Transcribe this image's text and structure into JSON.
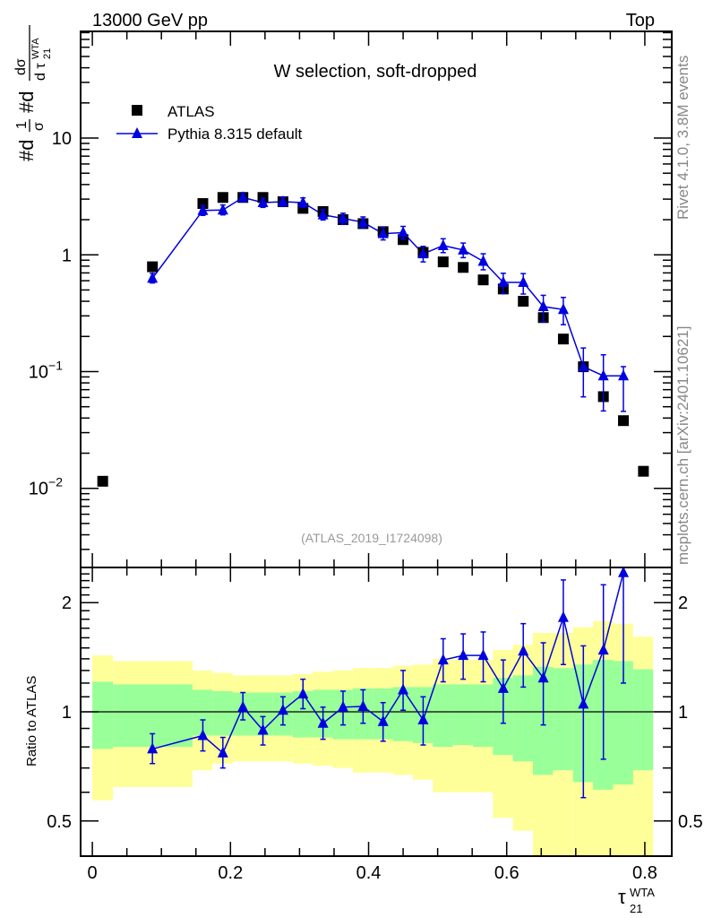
{
  "header": {
    "left": "13000 GeV pp",
    "right": "Top"
  },
  "side_text": {
    "rivet": "Rivet 4.1.0,  3.8M events",
    "mcplots": "mcplots.cern.ch [arXiv:2401.10621]"
  },
  "analysis_id": "(ATLAS_2019_I1724098)",
  "chart_data": [
    {
      "type": "scatter",
      "title": "W selection, soft-dropped",
      "ylabel": "#d 1/σ #d dσ/dτ21WTA",
      "ylabel_parts": {
        "a": "#d",
        "b": "1",
        "c": "σ",
        "d": "#d",
        "e": "dσ",
        "f": "d τ",
        "g": "21",
        "h": "WTA"
      },
      "yscale": "log",
      "ylim": [
        0.0021,
        82
      ],
      "xlim": [
        -0.017,
        0.839
      ],
      "yticks": [
        {
          "v": 0.01,
          "base": "10",
          "exp": "−2"
        },
        {
          "v": 0.1,
          "base": "10",
          "exp": "−1"
        },
        {
          "v": 1,
          "base": "1",
          "exp": ""
        },
        {
          "v": 10,
          "base": "10",
          "exp": ""
        }
      ],
      "legend": {
        "placement": "top-left",
        "entries": [
          "ATLAS",
          "Pythia 8.315 default"
        ]
      },
      "colors": {
        "data": "#000000",
        "mc": "#0000e0"
      },
      "x": [
        0.015,
        0.087,
        0.16,
        0.189,
        0.218,
        0.247,
        0.276,
        0.305,
        0.334,
        0.363,
        0.392,
        0.421,
        0.45,
        0.479,
        0.508,
        0.537,
        0.566,
        0.595,
        0.624,
        0.653,
        0.682,
        0.711,
        0.74,
        0.769,
        0.798
      ],
      "series": [
        {
          "name": "ATLAS",
          "values": [
            0.0115,
            0.79,
            2.75,
            3.1,
            3.1,
            3.1,
            2.85,
            2.5,
            2.35,
            2.0,
            1.85,
            1.58,
            1.35,
            1.05,
            0.87,
            0.78,
            0.61,
            0.51,
            0.4,
            0.29,
            0.19,
            0.11,
            0.061,
            0.038,
            0.014
          ]
        },
        {
          "name": "Pythia 8.315 default",
          "values": [
            null,
            0.63,
            2.4,
            2.42,
            3.1,
            2.8,
            2.85,
            2.8,
            2.2,
            2.05,
            1.9,
            1.52,
            1.55,
            1.02,
            1.2,
            1.1,
            0.88,
            0.58,
            0.58,
            0.36,
            0.34,
            0.11,
            0.092,
            0.092,
            null
          ]
        }
      ]
    },
    {
      "type": "scatter",
      "ylabel": "Ratio to ATLAS",
      "xlabel": "τ",
      "xlabel_sub": "21",
      "xlabel_sup": "WTA",
      "yscale": "log",
      "ylim": [
        0.4,
        2.5
      ],
      "yticks": [
        0.5,
        1,
        2
      ],
      "xticks": [
        0,
        0.2,
        0.4,
        0.6,
        0.8
      ],
      "xtick_labels": [
        "0",
        "0.2",
        "0.4",
        "0.6",
        "0.8"
      ],
      "colors": {
        "yellow": "#ffff99",
        "green": "#99ff99"
      },
      "bin_edges": [
        0,
        0.03,
        0.145,
        0.174,
        0.203,
        0.232,
        0.261,
        0.29,
        0.319,
        0.348,
        0.377,
        0.406,
        0.435,
        0.464,
        0.493,
        0.522,
        0.551,
        0.58,
        0.609,
        0.638,
        0.667,
        0.696,
        0.725,
        0.754,
        0.783,
        0.812
      ],
      "band_yellow": [
        [
          0.57,
          1.43
        ],
        [
          0.62,
          1.38
        ],
        [
          0.69,
          1.3
        ],
        [
          0.72,
          1.28
        ],
        [
          0.73,
          1.26
        ],
        [
          0.73,
          1.26
        ],
        [
          0.73,
          1.26
        ],
        [
          0.72,
          1.27
        ],
        [
          0.71,
          1.29
        ],
        [
          0.7,
          1.3
        ],
        [
          0.68,
          1.32
        ],
        [
          0.68,
          1.32
        ],
        [
          0.67,
          1.34
        ],
        [
          0.65,
          1.35
        ],
        [
          0.6,
          1.4
        ],
        [
          0.6,
          1.39
        ],
        [
          0.6,
          1.39
        ],
        [
          0.51,
          1.48
        ],
        [
          0.47,
          1.53
        ],
        [
          0.35,
          1.65
        ],
        [
          0.35,
          1.65
        ],
        [
          0.35,
          1.71
        ],
        [
          0.35,
          1.78
        ],
        [
          0.35,
          1.75
        ],
        [
          0.35,
          1.61
        ]
      ],
      "band_green": [
        [
          0.79,
          1.21
        ],
        [
          0.8,
          1.19
        ],
        [
          0.86,
          1.15
        ],
        [
          0.86,
          1.14
        ],
        [
          0.86,
          1.13
        ],
        [
          0.86,
          1.13
        ],
        [
          0.86,
          1.13
        ],
        [
          0.85,
          1.14
        ],
        [
          0.85,
          1.15
        ],
        [
          0.84,
          1.15
        ],
        [
          0.84,
          1.16
        ],
        [
          0.84,
          1.16
        ],
        [
          0.83,
          1.17
        ],
        [
          0.82,
          1.17
        ],
        [
          0.8,
          1.19
        ],
        [
          0.81,
          1.19
        ],
        [
          0.8,
          1.19
        ],
        [
          0.76,
          1.24
        ],
        [
          0.73,
          1.26
        ],
        [
          0.67,
          1.33
        ],
        [
          0.69,
          1.32
        ],
        [
          0.64,
          1.35
        ],
        [
          0.61,
          1.39
        ],
        [
          0.63,
          1.38
        ],
        [
          0.69,
          1.31
        ]
      ],
      "ratio": [
        null,
        0.79,
        0.86,
        0.77,
        1.03,
        0.89,
        1.01,
        1.12,
        0.93,
        1.03,
        1.035,
        0.94,
        1.15,
        0.95,
        1.39,
        1.43,
        1.43,
        1.16,
        1.47,
        1.24,
        1.82,
        1.05,
        1.48,
        2.42,
        null
      ],
      "ratio_err": [
        null,
        [
          0.72,
          0.87
        ],
        [
          0.78,
          0.95
        ],
        [
          0.7,
          0.85
        ],
        [
          0.95,
          1.13
        ],
        [
          0.81,
          0.97
        ],
        [
          0.92,
          1.1
        ],
        [
          1.02,
          1.23
        ],
        [
          0.84,
          1.03
        ],
        [
          0.92,
          1.14
        ],
        [
          0.93,
          1.15
        ],
        [
          0.83,
          1.06
        ],
        [
          1.01,
          1.3
        ],
        [
          0.81,
          1.1
        ],
        [
          1.21,
          1.59
        ],
        [
          1.23,
          1.64
        ],
        [
          1.21,
          1.66
        ],
        [
          0.93,
          1.39
        ],
        [
          1.17,
          1.75
        ],
        [
          0.92,
          1.55
        ],
        [
          1.35,
          2.31
        ],
        [
          0.58,
          1.52
        ],
        [
          0.74,
          2.24
        ],
        [
          1.2,
          2.9
        ],
        null
      ]
    }
  ]
}
